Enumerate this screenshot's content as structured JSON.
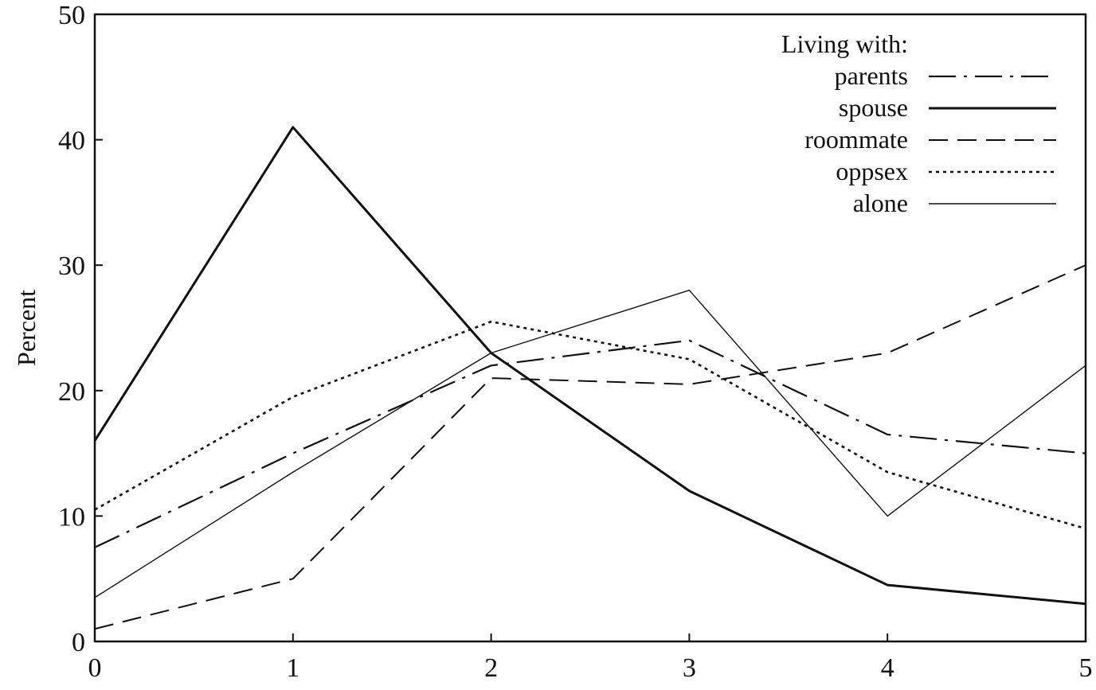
{
  "chart_data": {
    "type": "line",
    "title": "",
    "xlabel": "",
    "ylabel": "Percent",
    "x": [
      0,
      1,
      2,
      3,
      4,
      5
    ],
    "xlim": [
      0,
      5
    ],
    "ylim": [
      0,
      50
    ],
    "xticks": [
      "0",
      "1",
      "2",
      "3",
      "4",
      "5"
    ],
    "yticks": [
      "0",
      "10",
      "20",
      "30",
      "40",
      "50"
    ],
    "grid": false,
    "legend": {
      "title": "Living with:",
      "placement": "top-right"
    },
    "series": [
      {
        "name": "parents",
        "style": "long-dash-dot",
        "color": "#111111",
        "values": [
          7.5,
          15,
          22,
          24,
          16.5,
          15
        ]
      },
      {
        "name": "spouse",
        "style": "solid-heavy",
        "color": "#111111",
        "values": [
          16,
          41,
          23,
          12,
          4.5,
          3
        ]
      },
      {
        "name": "roommate",
        "style": "dash",
        "color": "#111111",
        "values": [
          1,
          5,
          21,
          20.5,
          23,
          30
        ]
      },
      {
        "name": "oppsex",
        "style": "dotted",
        "color": "#111111",
        "values": [
          10.5,
          19.5,
          25.5,
          22.5,
          13.5,
          9
        ]
      },
      {
        "name": "alone",
        "style": "solid-thin",
        "color": "#111111",
        "values": [
          3.5,
          13.5,
          23,
          28,
          10,
          22
        ]
      }
    ]
  }
}
